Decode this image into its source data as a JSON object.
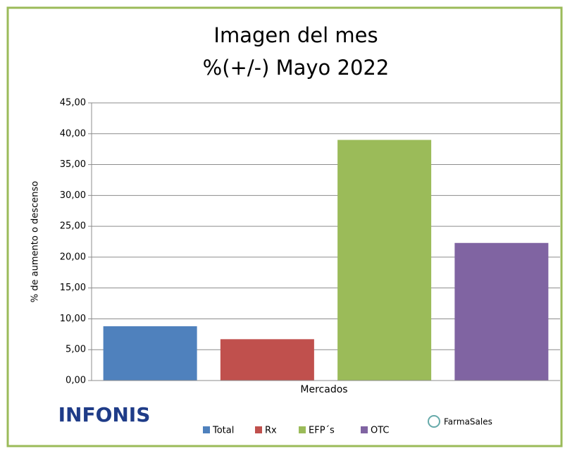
{
  "chart_data": {
    "type": "bar",
    "title": "Imagen del mes",
    "subtitle": "%(+/-) Mayo 2022",
    "y_label": "% de aumento o descenso",
    "x_label": "Mercados",
    "series": [
      {
        "name": "Total",
        "color": "#4f81bd",
        "values": [
          8.8
        ]
      },
      {
        "name": "Rx",
        "color": "#c0504d",
        "values": [
          6.7
        ]
      },
      {
        "name": "EFP´s",
        "color": "#9bbb59",
        "values": [
          39.0
        ]
      },
      {
        "name": "OTC",
        "color": "#8064a2",
        "values": [
          22.3
        ]
      }
    ],
    "ylim": [
      0,
      45
    ],
    "yticks": [
      {
        "value": 0,
        "label": "0,00"
      },
      {
        "value": 5,
        "label": "5,00"
      },
      {
        "value": 10,
        "label": "10,00"
      },
      {
        "value": 15,
        "label": "15,00"
      },
      {
        "value": 20,
        "label": "20,00"
      },
      {
        "value": 25,
        "label": "25,00"
      },
      {
        "value": 30,
        "label": "30,00"
      },
      {
        "value": 35,
        "label": "35,00"
      },
      {
        "value": 40,
        "label": "40,00"
      },
      {
        "value": 45,
        "label": "45,00"
      }
    ],
    "logos": [
      "INFONIS",
      "FarmaSales"
    ]
  }
}
